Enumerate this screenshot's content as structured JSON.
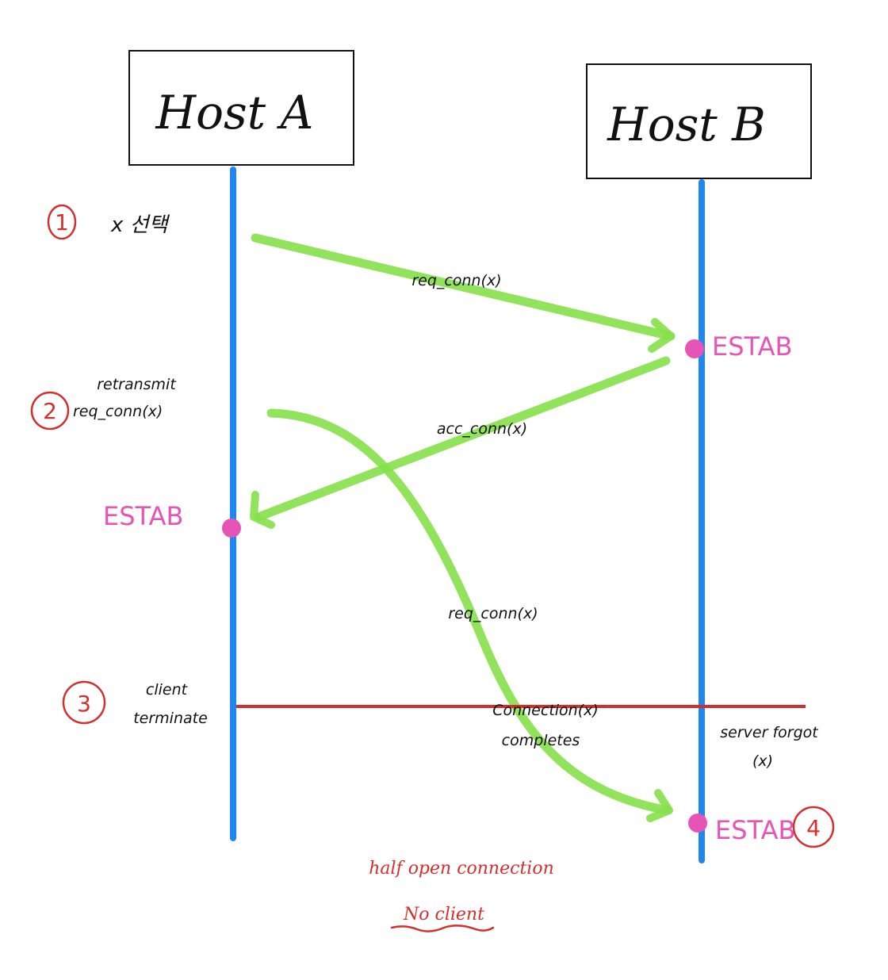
{
  "colors": {
    "lifeline": "#1e88f0",
    "message": "#86e04a",
    "estab": "#e655b5",
    "annotation_red": "#d32f2f",
    "text": "#111111"
  },
  "hosts": {
    "a": {
      "label": "Host A"
    },
    "b": {
      "label": "Host B"
    }
  },
  "messages": {
    "m1": {
      "label": "req_conn(x)"
    },
    "m2": {
      "label": "acc_conn(x)"
    },
    "m3": {
      "label": "req_conn(x)"
    }
  },
  "steps": {
    "s1": {
      "number": "1",
      "note": "x 선택"
    },
    "s2": {
      "number": "2",
      "note_line1": "retransmit",
      "note_line2": "req_conn(x)"
    },
    "s3": {
      "number": "3",
      "note_line1": "client",
      "note_line2": "terminate"
    },
    "s4": {
      "number": "4"
    }
  },
  "states": {
    "b_first": "ESTAB",
    "a": "ESTAB",
    "b_second": "ESTAB"
  },
  "notes": {
    "connection_line1": "Connection(x)",
    "connection_line2": "completes",
    "server_line1": "server forgot",
    "server_line2": "(x)"
  },
  "footer": {
    "line1": "half open connection",
    "line2": "No client"
  }
}
